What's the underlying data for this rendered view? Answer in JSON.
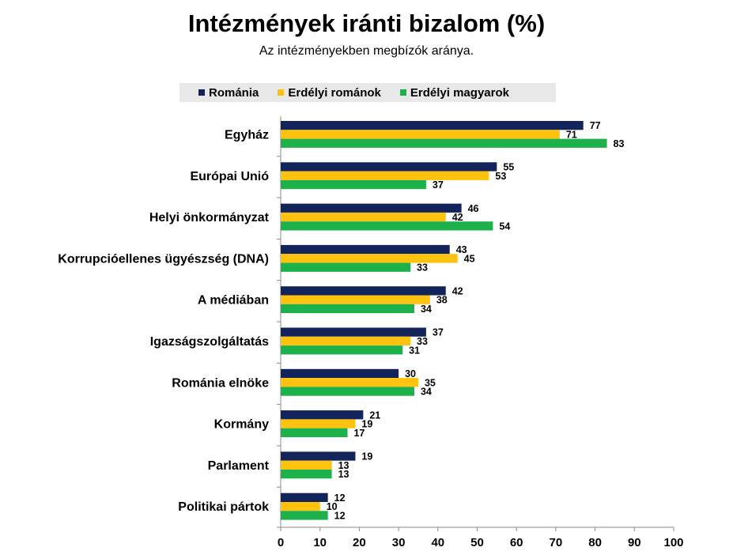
{
  "chart_data": {
    "type": "bar",
    "orientation": "horizontal",
    "title": "Intézmények iránti bizalom (%)",
    "subtitle": "Az intézményekben megbízók aránya.",
    "categories": [
      "Egyház",
      "Európai Unió",
      "Helyi önkormányzat",
      "Korrupcióellenes ügyészség (DNA)",
      "A médiában",
      "Igazságszolgáltatás",
      "Románia elnöke",
      "Kormány",
      "Parlament",
      "Politikai pártok"
    ],
    "series": [
      {
        "name": "Románia",
        "color": "#13245a",
        "values": [
          77,
          55,
          46,
          43,
          42,
          37,
          30,
          21,
          19,
          12
        ]
      },
      {
        "name": "Erdélyi románok",
        "color": "#ffc20e",
        "values": [
          71,
          53,
          42,
          45,
          38,
          33,
          35,
          19,
          13,
          10
        ]
      },
      {
        "name": "Erdélyi magyarok",
        "color": "#1db14b",
        "values": [
          83,
          37,
          54,
          33,
          34,
          31,
          34,
          17,
          13,
          12
        ]
      }
    ],
    "xlim": [
      0,
      100
    ],
    "xticks": [
      0,
      10,
      20,
      30,
      40,
      50,
      60,
      70,
      80,
      90,
      100
    ],
    "legend_position": "top",
    "grid": false
  }
}
